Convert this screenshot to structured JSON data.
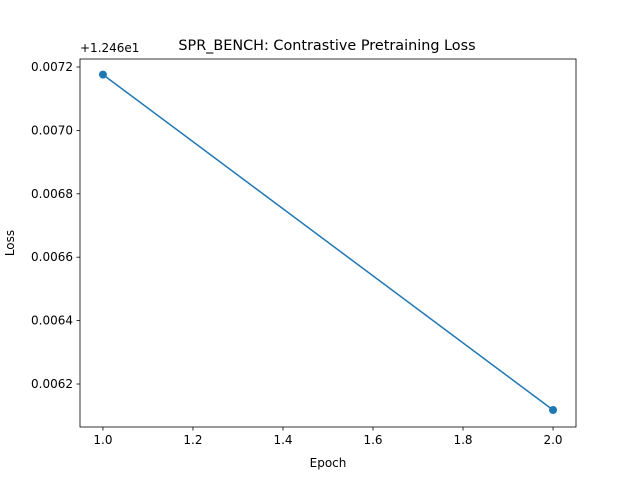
{
  "chart_data": {
    "type": "line",
    "title": "SPR_BENCH: Contrastive Pretraining Loss",
    "xlabel": "Epoch",
    "ylabel": "Loss",
    "y_offset": "+1.246e1",
    "x": [
      1,
      2
    ],
    "series": [
      {
        "color": "#1f77b4",
        "values": [
          0.007176,
          0.006118
        ]
      }
    ],
    "xlim": [
      0.949,
      2.051
    ],
    "xticks": [
      {
        "value": 1,
        "label": "1.0"
      },
      {
        "value": 1.2,
        "label": "1.2"
      },
      {
        "value": 1.4,
        "label": "1.4"
      },
      {
        "value": 1.6,
        "label": "1.6"
      },
      {
        "value": 1.8,
        "label": "1.8"
      },
      {
        "value": 2,
        "label": "2.0"
      }
    ],
    "ylim": [
      0.0060644,
      0.0072252
    ],
    "yticks": [
      0.0062,
      0.0064,
      0.0066,
      0.0068,
      {
        "value": 0.007,
        "label": "0.0070"
      },
      0.0072
    ],
    "grid": false
  }
}
